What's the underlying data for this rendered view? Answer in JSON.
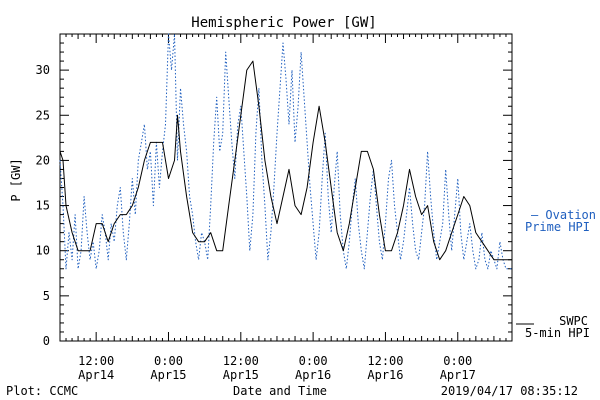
{
  "chart_data": {
    "type": "line",
    "title": "Hemispheric Power [GW]",
    "ylabel": "P [GW]",
    "xlabel": "Date and Time",
    "ylim": [
      0,
      34
    ],
    "yticks": [
      0,
      5,
      10,
      15,
      20,
      25,
      30
    ],
    "xlim_hours_from_apr14_0600": [
      0,
      75
    ],
    "xticks": [
      {
        "time": "12:00",
        "date": "Apr14"
      },
      {
        "time": "0:00",
        "date": "Apr15"
      },
      {
        "time": "12:00",
        "date": "Apr15"
      },
      {
        "time": "0:00",
        "date": "Apr16"
      },
      {
        "time": "12:00",
        "date": "Apr16"
      },
      {
        "time": "0:00",
        "date": "Apr17"
      }
    ],
    "series": [
      {
        "name": "SWPC 5-min HPI",
        "name_line1": "SWPC",
        "name_line2": "5-min HPI",
        "color": "#000000",
        "style": "solid",
        "points": [
          [
            0,
            21
          ],
          [
            0.5,
            20
          ],
          [
            1,
            15
          ],
          [
            2,
            12
          ],
          [
            3,
            10
          ],
          [
            4,
            10
          ],
          [
            5,
            10
          ],
          [
            6,
            13
          ],
          [
            7,
            13
          ],
          [
            8,
            11
          ],
          [
            9,
            13
          ],
          [
            10,
            14
          ],
          [
            11,
            14
          ],
          [
            12,
            15
          ],
          [
            13,
            17
          ],
          [
            14,
            20
          ],
          [
            15,
            22
          ],
          [
            16,
            22
          ],
          [
            17,
            22
          ],
          [
            18,
            18
          ],
          [
            19,
            20
          ],
          [
            19.5,
            25
          ],
          [
            20,
            21
          ],
          [
            21,
            16
          ],
          [
            22,
            12
          ],
          [
            23,
            11
          ],
          [
            24,
            11
          ],
          [
            25,
            12
          ],
          [
            26,
            10
          ],
          [
            27,
            10
          ],
          [
            28,
            15
          ],
          [
            29,
            20
          ],
          [
            30,
            25
          ],
          [
            31,
            30
          ],
          [
            32,
            31
          ],
          [
            33,
            26
          ],
          [
            34,
            20
          ],
          [
            35,
            16
          ],
          [
            36,
            13
          ],
          [
            37,
            16
          ],
          [
            38,
            19
          ],
          [
            39,
            15
          ],
          [
            40,
            14
          ],
          [
            41,
            17
          ],
          [
            42,
            22
          ],
          [
            43,
            26
          ],
          [
            44,
            22
          ],
          [
            45,
            17
          ],
          [
            46,
            12
          ],
          [
            47,
            10
          ],
          [
            48,
            13
          ],
          [
            49,
            17
          ],
          [
            50,
            21
          ],
          [
            51,
            21
          ],
          [
            52,
            19
          ],
          [
            53,
            14
          ],
          [
            54,
            10
          ],
          [
            55,
            10
          ],
          [
            56,
            12
          ],
          [
            57,
            15
          ],
          [
            58,
            19
          ],
          [
            59,
            16
          ],
          [
            60,
            14
          ],
          [
            61,
            15
          ],
          [
            62,
            11
          ],
          [
            63,
            9
          ],
          [
            64,
            10
          ],
          [
            65,
            12
          ],
          [
            66,
            14
          ],
          [
            67,
            16
          ],
          [
            68,
            15
          ],
          [
            69,
            12
          ],
          [
            70,
            11
          ],
          [
            71,
            10
          ],
          [
            72,
            9
          ],
          [
            73,
            9
          ],
          [
            75,
            9
          ]
        ]
      },
      {
        "name": "Ovation Prime HPI",
        "name_line1": "— Ovation",
        "name_line2": "Prime HPI",
        "color": "#1f5fbf",
        "style": "dotted",
        "points": [
          [
            0,
            20
          ],
          [
            0.5,
            15
          ],
          [
            1,
            8
          ],
          [
            1.5,
            12
          ],
          [
            2,
            9
          ],
          [
            2.5,
            14
          ],
          [
            3,
            8
          ],
          [
            3.5,
            10
          ],
          [
            4,
            16
          ],
          [
            4.5,
            12
          ],
          [
            5,
            9
          ],
          [
            5.5,
            11
          ],
          [
            6,
            8
          ],
          [
            6.5,
            10
          ],
          [
            7,
            14
          ],
          [
            7.5,
            12
          ],
          [
            8,
            9
          ],
          [
            8.5,
            13
          ],
          [
            9,
            11
          ],
          [
            9.5,
            15
          ],
          [
            10,
            17
          ],
          [
            10.5,
            12
          ],
          [
            11,
            9
          ],
          [
            11.5,
            13
          ],
          [
            12,
            18
          ],
          [
            12.5,
            14
          ],
          [
            13,
            20
          ],
          [
            13.5,
            22
          ],
          [
            14,
            24
          ],
          [
            14.5,
            19
          ],
          [
            15,
            21
          ],
          [
            15.5,
            15
          ],
          [
            16,
            22
          ],
          [
            16.5,
            17
          ],
          [
            17,
            21
          ],
          [
            17.5,
            24
          ],
          [
            18,
            34
          ],
          [
            18.5,
            30
          ],
          [
            19,
            34
          ],
          [
            19.5,
            20
          ],
          [
            20,
            28
          ],
          [
            20.5,
            24
          ],
          [
            21,
            21
          ],
          [
            21.5,
            16
          ],
          [
            22,
            14
          ],
          [
            22.5,
            11
          ],
          [
            23,
            9
          ],
          [
            23.5,
            12
          ],
          [
            24,
            11
          ],
          [
            24.5,
            9
          ],
          [
            25,
            15
          ],
          [
            25.5,
            22
          ],
          [
            26,
            27
          ],
          [
            26.5,
            21
          ],
          [
            27,
            23
          ],
          [
            27.5,
            32
          ],
          [
            28,
            27
          ],
          [
            28.5,
            22
          ],
          [
            29,
            18
          ],
          [
            29.5,
            24
          ],
          [
            30,
            26
          ],
          [
            30.5,
            21
          ],
          [
            31,
            16
          ],
          [
            31.5,
            10
          ],
          [
            32,
            14
          ],
          [
            32.5,
            23
          ],
          [
            33,
            28
          ],
          [
            33.5,
            20
          ],
          [
            34,
            15
          ],
          [
            34.5,
            9
          ],
          [
            35,
            12
          ],
          [
            35.5,
            17
          ],
          [
            36,
            23
          ],
          [
            36.5,
            28
          ],
          [
            37,
            33
          ],
          [
            37.5,
            29
          ],
          [
            38,
            24
          ],
          [
            38.5,
            30
          ],
          [
            39,
            22
          ],
          [
            39.5,
            26
          ],
          [
            40,
            32
          ],
          [
            40.5,
            27
          ],
          [
            41,
            22
          ],
          [
            41.5,
            17
          ],
          [
            42,
            13
          ],
          [
            42.5,
            9
          ],
          [
            43,
            12
          ],
          [
            43.5,
            18
          ],
          [
            44,
            23
          ],
          [
            44.5,
            16
          ],
          [
            45,
            12
          ],
          [
            45.5,
            17
          ],
          [
            46,
            21
          ],
          [
            46.5,
            14
          ],
          [
            47,
            10
          ],
          [
            47.5,
            8
          ],
          [
            48,
            11
          ],
          [
            48.5,
            15
          ],
          [
            49,
            18
          ],
          [
            49.5,
            13
          ],
          [
            50,
            10
          ],
          [
            50.5,
            8
          ],
          [
            51,
            12
          ],
          [
            51.5,
            16
          ],
          [
            52,
            19
          ],
          [
            52.5,
            15
          ],
          [
            53,
            11
          ],
          [
            53.5,
            9
          ],
          [
            54,
            13
          ],
          [
            54.5,
            18
          ],
          [
            55,
            20
          ],
          [
            55.5,
            15
          ],
          [
            56,
            12
          ],
          [
            56.5,
            9
          ],
          [
            57,
            11
          ],
          [
            57.5,
            14
          ],
          [
            58,
            17
          ],
          [
            58.5,
            13
          ],
          [
            59,
            10
          ],
          [
            59.5,
            9
          ],
          [
            60,
            12
          ],
          [
            60.5,
            15
          ],
          [
            61,
            21
          ],
          [
            61.5,
            16
          ],
          [
            62,
            12
          ],
          [
            62.5,
            9
          ],
          [
            63,
            11
          ],
          [
            63.5,
            13
          ],
          [
            64,
            19
          ],
          [
            64.5,
            14
          ],
          [
            65,
            10
          ],
          [
            65.5,
            14
          ],
          [
            66,
            18
          ],
          [
            66.5,
            12
          ],
          [
            67,
            9
          ],
          [
            67.5,
            11
          ],
          [
            68,
            13
          ],
          [
            68.5,
            10
          ],
          [
            69,
            8
          ],
          [
            69.5,
            9
          ],
          [
            70,
            12
          ],
          [
            70.5,
            9
          ],
          [
            71,
            8
          ],
          [
            71.5,
            10
          ],
          [
            72,
            9
          ],
          [
            72.5,
            8
          ],
          [
            73,
            11
          ],
          [
            73.5,
            9
          ],
          [
            74,
            8
          ],
          [
            75,
            8
          ]
        ]
      }
    ]
  },
  "footer": {
    "left": "Plot: CCMC",
    "right": "2019/04/17 08:35:12"
  }
}
